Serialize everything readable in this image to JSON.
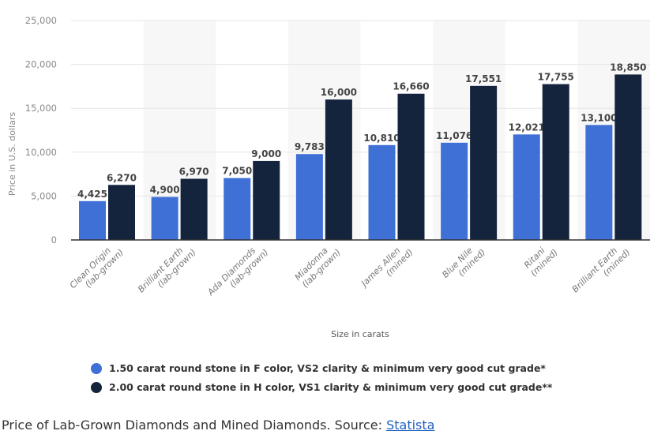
{
  "chart_data": {
    "type": "bar",
    "categories": [
      "Clean Origin (lab-grown)",
      "Brilliant Earth (lab-grown)",
      "Ada Diamonds (lab-grown)",
      "Miadonna (lab-grown)",
      "James Allen (mined)",
      "Blue Nile (mined)",
      "Ritani (mined)",
      "Brilliant Earth (mined)"
    ],
    "series": [
      {
        "name": "1.50 carat round stone in F color, VS2 clarity & minimum very good cut grade*",
        "values": [
          4425,
          4900,
          7050,
          9783,
          10810,
          11076,
          12021,
          13100
        ],
        "labels": [
          "4,425",
          "4,900",
          "7,050",
          "9,783",
          "10,810",
          "11,076",
          "12,021",
          "13,100"
        ],
        "color": "#3f70d6"
      },
      {
        "name": "2.00 carat round stone in H color, VS1 clarity & minimum very good cut grade**",
        "values": [
          6270,
          6970,
          9000,
          16000,
          16660,
          17551,
          17755,
          18850
        ],
        "labels": [
          "6,270",
          "6,970",
          "9,000",
          "16,000",
          "16,660",
          "17,551",
          "17,755",
          "18,850"
        ],
        "color": "#14243d"
      }
    ],
    "xlabel": "Size in carats",
    "ylabel": "Price in U.S. dollars",
    "ylim": [
      0,
      25000
    ],
    "yticks": [
      "0",
      "5,000",
      "10,000",
      "15,000",
      "20,000",
      "25,000"
    ],
    "grid": true,
    "legend": "bottom"
  },
  "caption": {
    "text": "Price of Lab-Grown Diamonds and Mined Diamonds. Source: ",
    "link": "Statista"
  }
}
